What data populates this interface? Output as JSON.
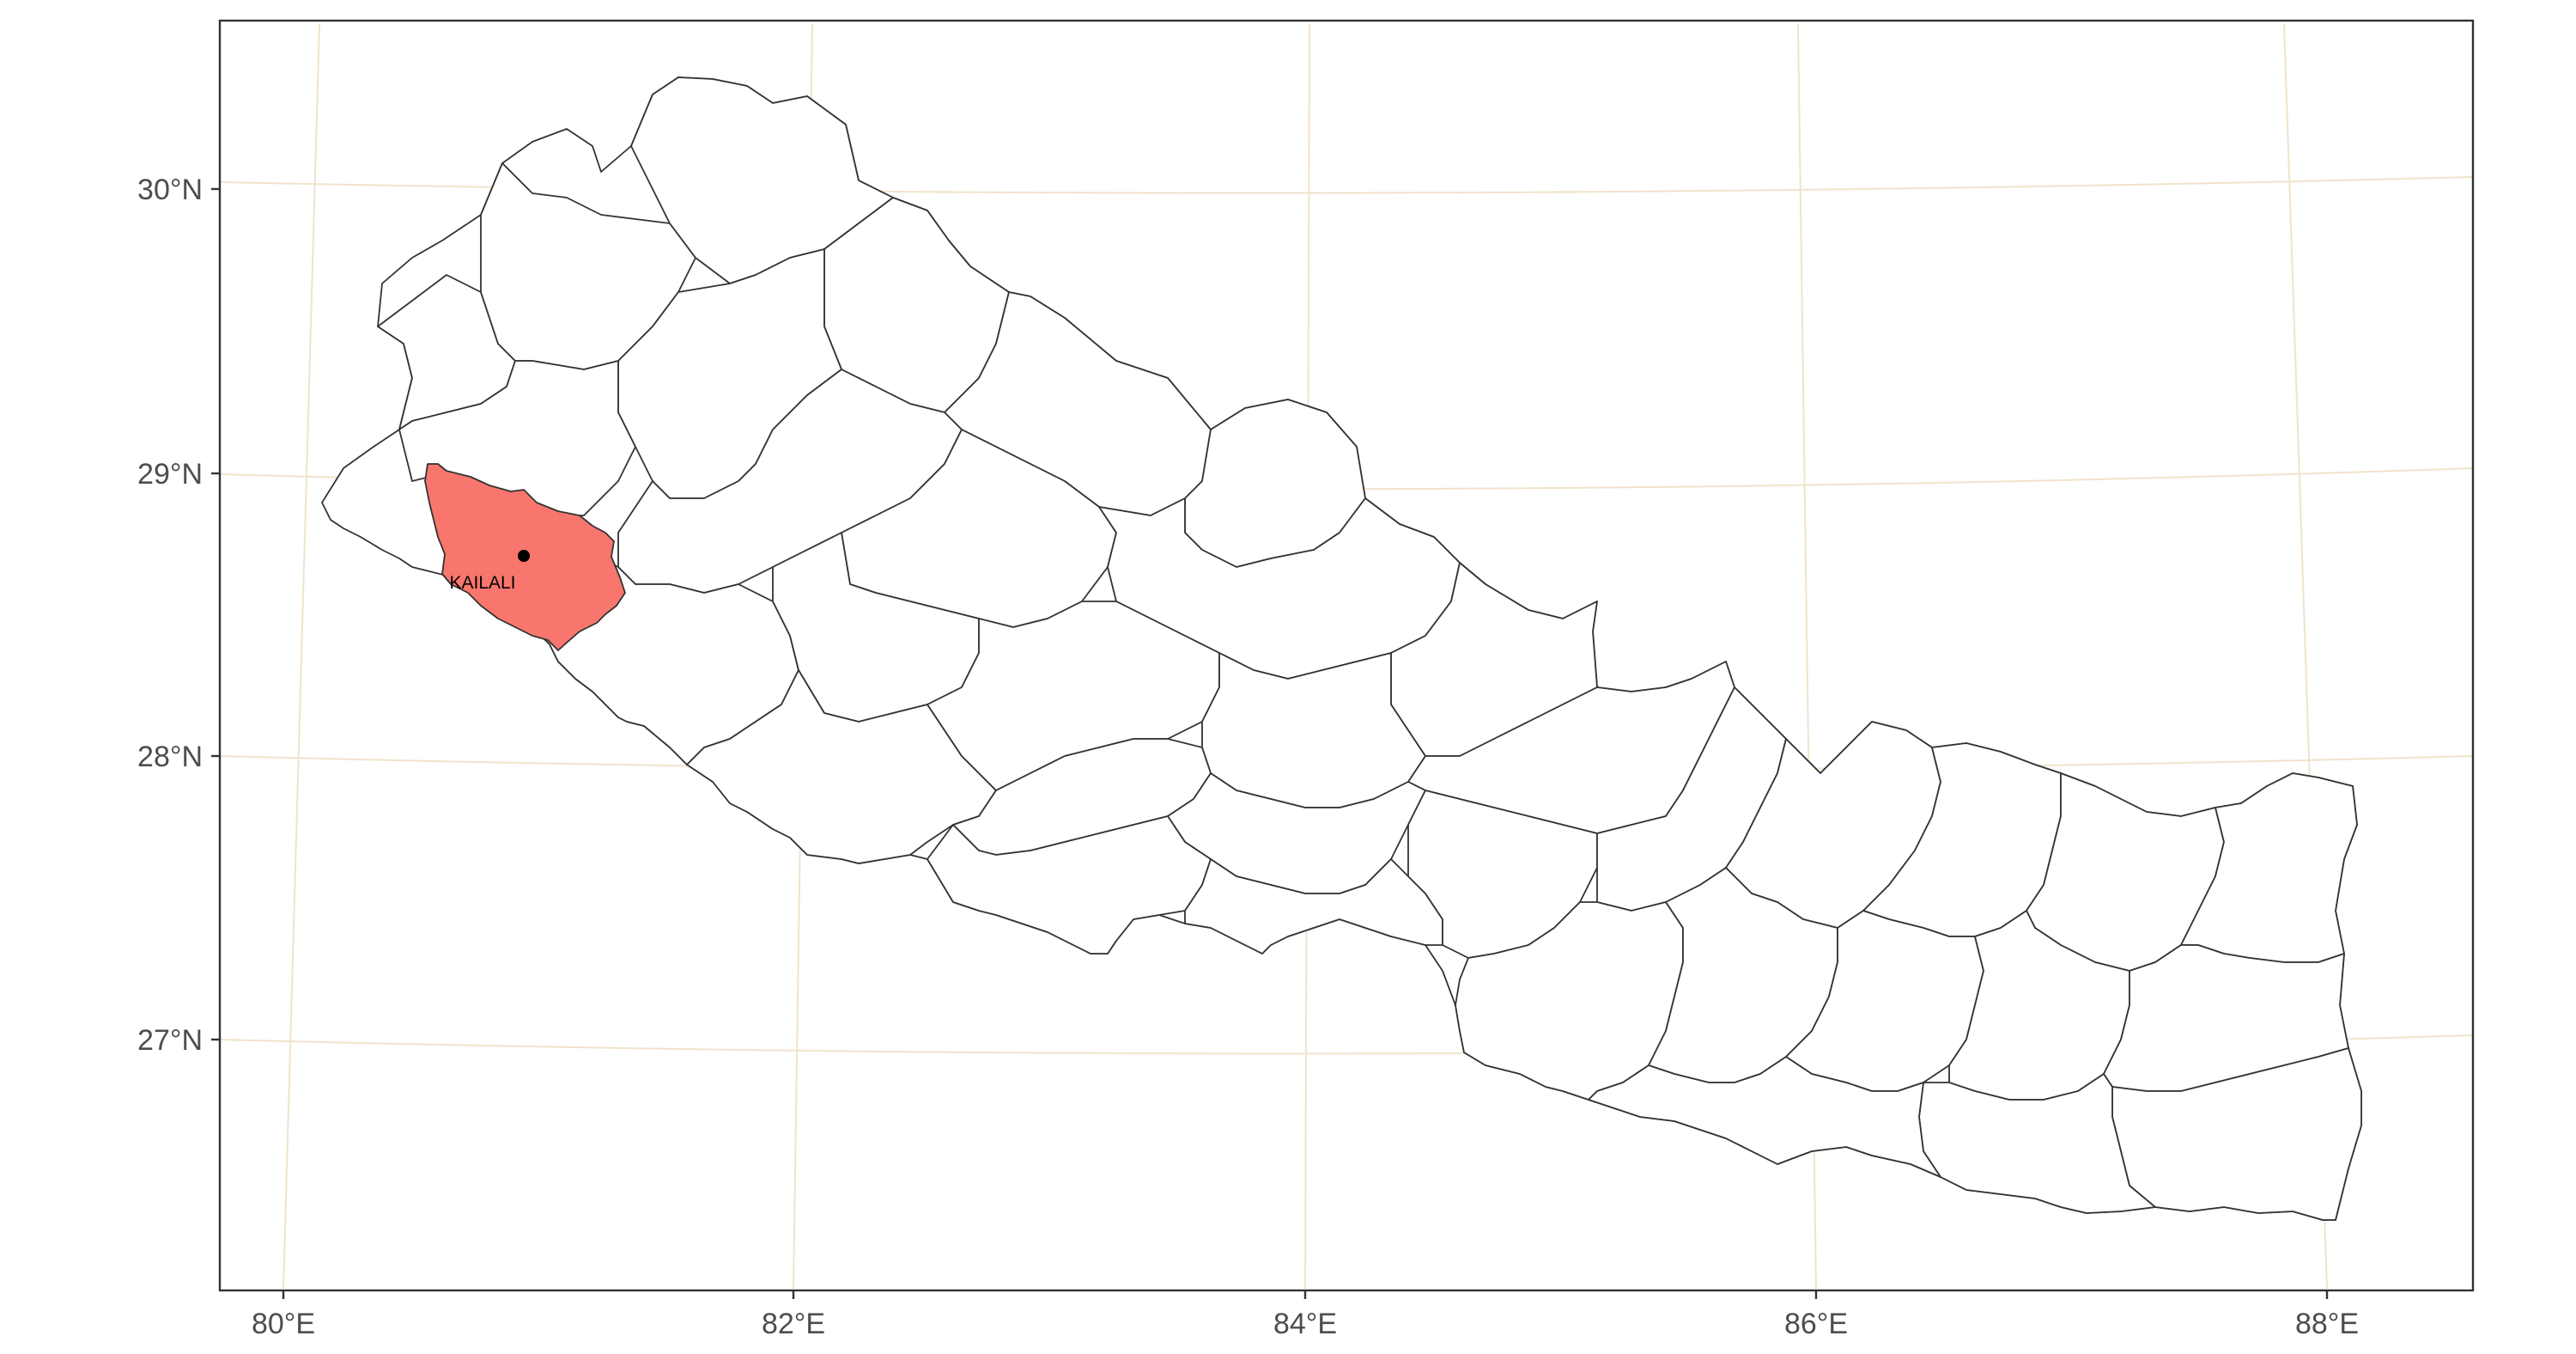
{
  "map": {
    "x_ticks": [
      "80°E",
      "82°E",
      "84°E",
      "86°E",
      "88°E"
    ],
    "y_ticks": [
      "30°N",
      "29°N",
      "28°N",
      "27°N"
    ],
    "highlight": {
      "label": "KAILALI",
      "fill": "#F8766D",
      "point_color": "#000000",
      "lon": 80.95,
      "lat": 28.71
    },
    "colors": {
      "district_fill": "#FFFFFF",
      "district_border": "#333333",
      "graticule": "#F1E3CC",
      "background": "#FFFFFF"
    }
  }
}
